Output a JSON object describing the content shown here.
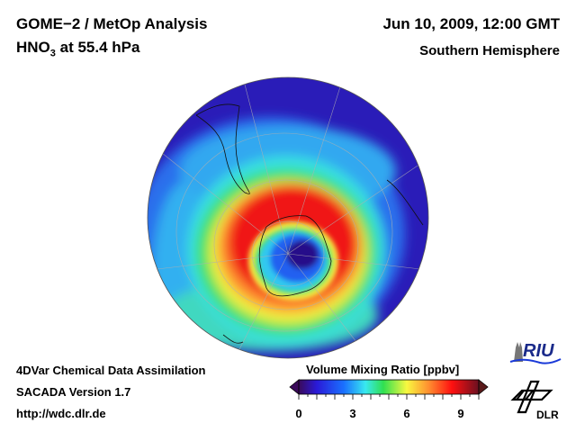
{
  "header": {
    "title": "GOME−2 / MetOp Analysis",
    "species": "HNO",
    "species_subscript": "3",
    "level": " at 55.4 hPa",
    "datetime": "Jun 10, 2009, 12:00 GMT",
    "region": "Southern Hemisphere"
  },
  "footer": {
    "line1": "4DVar Chemical Data Assimilation",
    "line2": "SACADA Version 1.7",
    "line3": "http://wdc.dlr.de"
  },
  "colorbar": {
    "title": "Volume Mixing Ratio [ppbv]",
    "min": 0,
    "max": 10,
    "ticks": [
      "0",
      "3",
      "6",
      "9"
    ],
    "colors": [
      "#3a0a5a",
      "#2a1ad8",
      "#1a70ff",
      "#38e8f0",
      "#30e050",
      "#f8f840",
      "#ff9030",
      "#ff1010",
      "#7a1020"
    ]
  },
  "map": {
    "projection": "orthographic south polar",
    "field_colors": {
      "low": "#3a20c8",
      "background": "#2818b8",
      "blue": "#2060f0",
      "cyan": "#30c8f0",
      "green": "#40e060",
      "yellow": "#f0f040",
      "orange": "#ff9030",
      "red": "#f01818",
      "vortex_core": "#28108a"
    }
  },
  "logos": {
    "riu": "RIU",
    "dlr": "DLR"
  }
}
